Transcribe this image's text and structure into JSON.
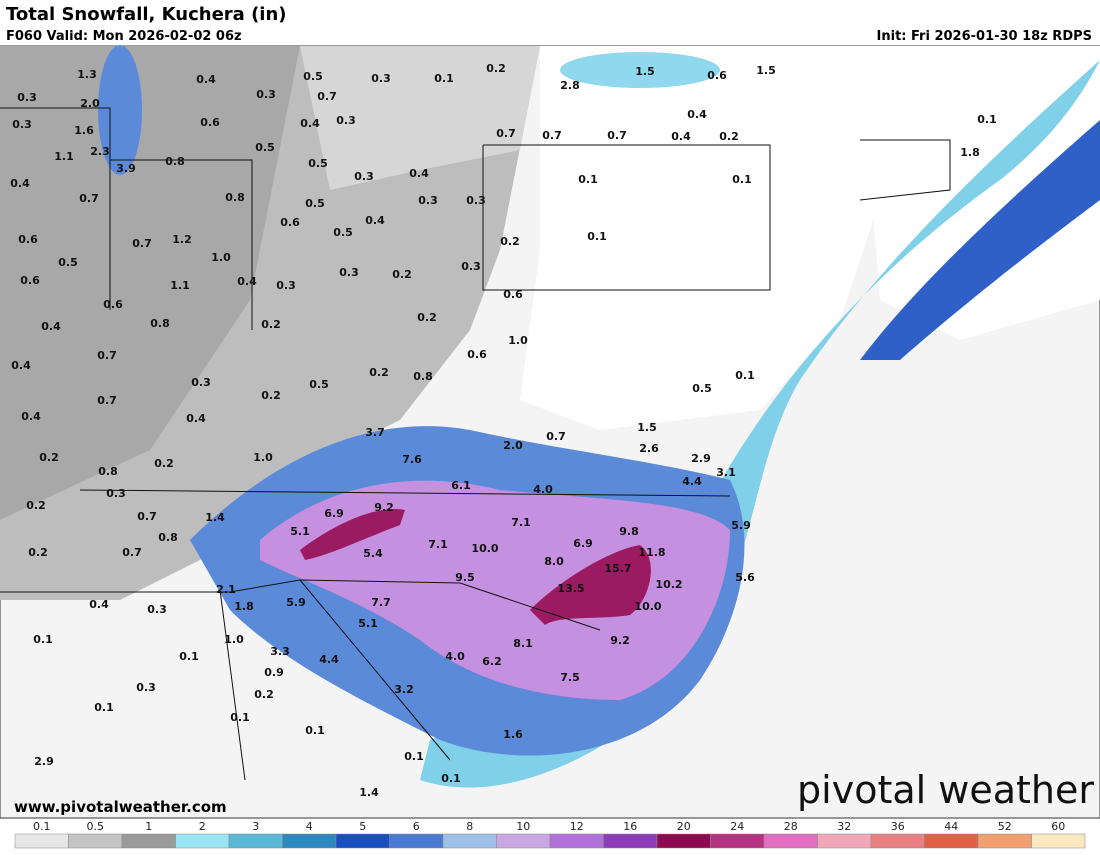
{
  "header": {
    "title": "Total Snowfall, Kuchera (in)",
    "valid": "F060 Valid: Mon 2026-02-02 06z",
    "init": "Init: Fri 2026-01-30 18z RDPS"
  },
  "map_labels": [
    "1.3",
    "0.4",
    "0.5",
    "0.3",
    "0.1",
    "0.2",
    "0.3",
    "2.0",
    "0.3",
    "0.7",
    "0.3",
    "1.6",
    "0.6",
    "0.4",
    "0.3",
    "1.1",
    "2.3",
    "0.5",
    "3.9",
    "0.8",
    "0.5",
    "0.3",
    "0.4",
    "0.4",
    "0.7",
    "0.8",
    "0.5",
    "0.3",
    "0.3",
    "0.6",
    "0.5",
    "0.4",
    "0.6",
    "0.7",
    "1.2",
    "0.2",
    "0.1",
    "0.5",
    "1.0",
    "0.3",
    "0.2",
    "0.3",
    "0.6",
    "1.1",
    "0.4",
    "0.3",
    "0.6",
    "0.6",
    "0.4",
    "0.8",
    "0.2",
    "0.2",
    "1.0",
    "0.7",
    "0.6",
    "0.4",
    "0.2",
    "0.8",
    "0.3",
    "0.5",
    "0.7",
    "0.2",
    "0.5",
    "0.1",
    "0.4",
    "0.4",
    "3.7",
    "1.5",
    "0.7",
    "2.0",
    "2.6",
    "0.2",
    "1.0",
    "7.6",
    "2.9",
    "0.8",
    "0.2",
    "3.1",
    "6.1",
    "4.4",
    "4.0",
    "0.3",
    "0.2",
    "9.2",
    "6.9",
    "0.7",
    "1.4",
    "7.1",
    "9.8",
    "5.9",
    "5.1",
    "0.8",
    "6.9",
    "0.2",
    "0.7",
    "5.4",
    "7.1",
    "10.0",
    "11.8",
    "8.0",
    "15.7",
    "9.5",
    "5.6",
    "10.2",
    "2.1",
    "13.5",
    "0.4",
    "0.3",
    "1.8",
    "5.9",
    "7.7",
    "10.0",
    "5.1",
    "0.1",
    "1.0",
    "9.2",
    "8.1",
    "3.3",
    "4.0",
    "6.2",
    "0.1",
    "4.4",
    "0.9",
    "0.3",
    "7.5",
    "0.2",
    "3.2",
    "0.1",
    "0.1",
    "0.1",
    "2.9",
    "1.6",
    "0.1",
    "1.4",
    "0.1",
    "1.6",
    "2.8",
    "1.5",
    "0.6",
    "1.5",
    "0.4",
    "0.7",
    "0.7",
    "0.7",
    "0.4",
    "0.2",
    "0.1",
    "0.1",
    "0.1",
    "1.8"
  ],
  "watermark": "www.pivotalweather.com",
  "logo": "pivotal weather",
  "colorbar": {
    "labels": [
      "0.1",
      "0.5",
      "1",
      "2",
      "3",
      "4",
      "5",
      "6",
      "8",
      "10",
      "12",
      "16",
      "20",
      "24",
      "28",
      "32",
      "36",
      "44",
      "52",
      "60"
    ],
    "colors": [
      "#e6e6e6",
      "#c4c4c4",
      "#9a9a9a",
      "#9be4f2",
      "#5cb8d6",
      "#2e88bd",
      "#1a4fbf",
      "#4a7ad0",
      "#9fc0e8",
      "#c9a8e2",
      "#b072d8",
      "#8d3eb6",
      "#8e0a50",
      "#b43482",
      "#e070bf",
      "#f0a8b8",
      "#e88282",
      "#e06048",
      "#f0a070",
      "#fbe8c0"
    ]
  }
}
